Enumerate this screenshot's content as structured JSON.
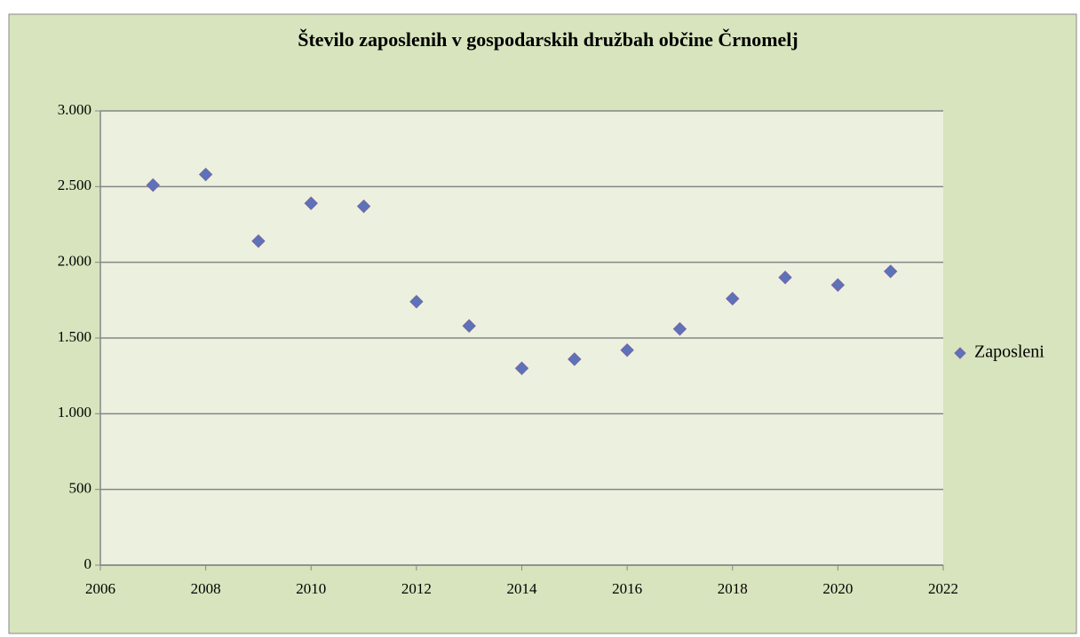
{
  "chart_data": {
    "type": "scatter",
    "title": "Število zaposlenih v gospodarskih družbah občine Črnomelj",
    "series": [
      {
        "name": "Zaposleni",
        "color": "#5b73b8",
        "x": [
          2007,
          2008,
          2009,
          2010,
          2011,
          2012,
          2013,
          2014,
          2015,
          2016,
          2017,
          2018,
          2019,
          2020,
          2021
        ],
        "values": [
          2510,
          2580,
          2140,
          2390,
          2370,
          1740,
          1580,
          1300,
          1360,
          1420,
          1560,
          1760,
          1900,
          1850,
          1940
        ]
      }
    ],
    "xlim": [
      2006,
      2022
    ],
    "xticks": [
      2006,
      2008,
      2010,
      2012,
      2014,
      2016,
      2018,
      2020,
      2022
    ],
    "ylim": [
      0,
      3000
    ],
    "yticks": [
      0,
      500,
      {
        "value": 1000,
        "label": "1.000"
      },
      {
        "value": 1500,
        "label": "1.500"
      },
      {
        "value": 2000,
        "label": "2.000"
      },
      {
        "value": 2500,
        "label": "2.500"
      },
      {
        "value": 3000,
        "label": "3.000"
      }
    ],
    "grid": true,
    "legend": "right"
  }
}
